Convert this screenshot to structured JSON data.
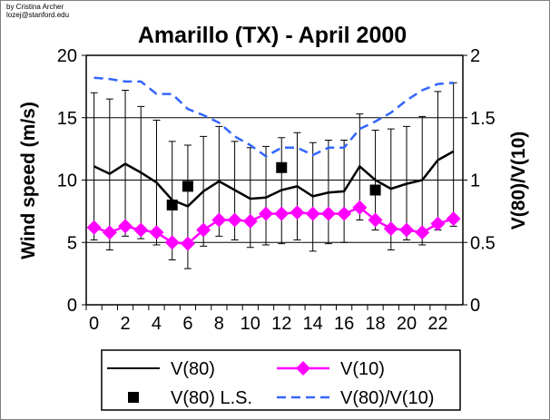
{
  "credit": {
    "line1": "by Cristina Archer",
    "line2": "lozej@stanford.edu"
  },
  "chart_data": {
    "type": "line",
    "title": "Amarillo (TX) - April 2000",
    "ylabel": "Wind speed (m/s)",
    "y2label": "V(80)/V(10)",
    "xlabel": "",
    "xlim": [
      -0.5,
      23.6
    ],
    "ylim": [
      0,
      20
    ],
    "y2lim": [
      0,
      2
    ],
    "xticks": [
      0,
      2,
      4,
      6,
      8,
      10,
      12,
      14,
      16,
      18,
      20,
      22
    ],
    "yticks": [
      0,
      5,
      10,
      15,
      20
    ],
    "y2ticks": [
      "0",
      "0.5",
      "1",
      "1.5",
      "2"
    ],
    "grid": "horizontal",
    "legend_position": "bottom",
    "colors": {
      "v80": "#000000",
      "v10": "#ff00ff",
      "ls": "#000000",
      "ratio": "#3366ff"
    },
    "x": [
      0,
      1,
      2,
      3,
      4,
      5,
      6,
      7,
      8,
      9,
      10,
      11,
      12,
      13,
      14,
      15,
      16,
      17,
      18,
      19,
      20,
      21,
      22,
      23
    ],
    "series": [
      {
        "name": "V(80)",
        "axis": "left",
        "style": "solid",
        "values": [
          11.1,
          10.5,
          11.3,
          10.6,
          9.8,
          8.4,
          7.9,
          9.1,
          9.9,
          9.2,
          8.5,
          8.6,
          9.2,
          9.5,
          8.7,
          9.0,
          9.1,
          11.1,
          10.0,
          9.3,
          9.7,
          10.0,
          11.6,
          12.3
        ],
        "error_high": [
          17.0,
          16.5,
          17.2,
          15.9,
          14.8,
          13.1,
          12.8,
          13.5,
          14.3,
          13.1,
          12.6,
          12.7,
          13.4,
          13.8,
          13.0,
          13.2,
          13.2,
          15.3,
          14.0,
          14.1,
          14.3,
          15.1,
          17.1,
          17.8
        ],
        "error_low": [
          5.2,
          4.4,
          5.5,
          5.3,
          4.8,
          3.6,
          2.9,
          4.7,
          5.5,
          5.2,
          4.6,
          4.8,
          4.9,
          5.2,
          4.3,
          4.9,
          5.0,
          6.8,
          6.0,
          4.4,
          5.2,
          4.8,
          6.0,
          6.3
        ]
      },
      {
        "name": "V(10)",
        "axis": "left",
        "style": "diamond",
        "values": [
          6.2,
          5.8,
          6.3,
          6.0,
          5.8,
          5.0,
          4.9,
          6.0,
          6.8,
          6.8,
          6.7,
          7.3,
          7.3,
          7.4,
          7.3,
          7.3,
          7.3,
          7.8,
          6.8,
          6.1,
          6.0,
          5.8,
          6.5,
          6.9
        ]
      },
      {
        "name": "V(80) L.S.",
        "axis": "left",
        "style": "square",
        "x": [
          5,
          6,
          12,
          18
        ],
        "values": [
          8.0,
          9.5,
          11.0,
          9.2
        ]
      },
      {
        "name": "V(80)/V(10)",
        "axis": "right",
        "style": "dashed",
        "values": [
          1.82,
          1.81,
          1.79,
          1.79,
          1.69,
          1.69,
          1.57,
          1.52,
          1.46,
          1.35,
          1.28,
          1.19,
          1.26,
          1.26,
          1.2,
          1.26,
          1.26,
          1.41,
          1.47,
          1.54,
          1.64,
          1.72,
          1.77,
          1.78
        ]
      }
    ]
  }
}
